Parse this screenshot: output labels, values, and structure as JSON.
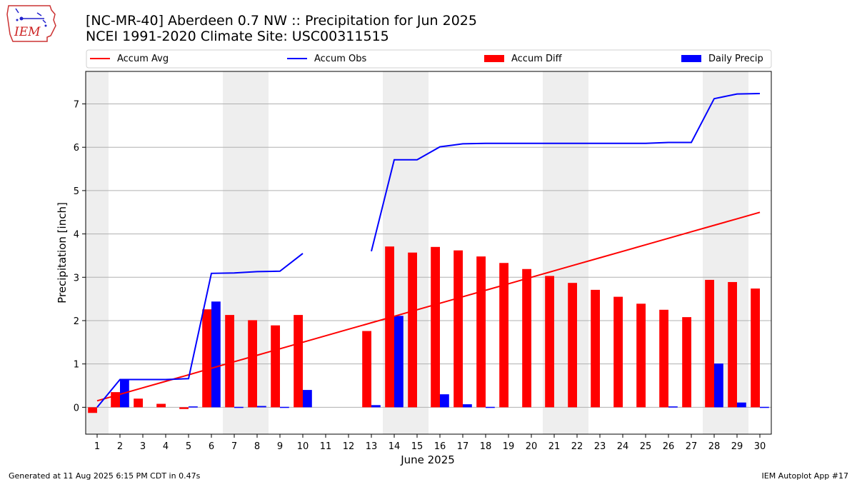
{
  "header": {
    "title_line1": "[NC-MR-40] Aberdeen 0.7 NW :: Precipitation for Jun 2025",
    "title_line2": "NCEI 1991-2020 Climate Site: USC00311515"
  },
  "logo": {
    "text": "IEM",
    "icon": "iem-iowa-logo"
  },
  "footer": {
    "generated": "Generated at 11 Aug 2025 6:15 PM CDT in 0.47s",
    "app": "IEM Autoplot App #17"
  },
  "colors": {
    "accum_avg": "#ff0000",
    "accum_obs": "#0000ff",
    "accum_diff": "#ff0000",
    "daily_precip": "#0000ff",
    "weekend_shade": "#eeeeee",
    "grid": "#b0b0b0"
  },
  "chart_data": {
    "type": "bar",
    "xlabel": "June 2025",
    "ylabel": "Precipitation [inch]",
    "ylim": [
      -0.62,
      7.75
    ],
    "yticks": [
      0,
      1,
      2,
      3,
      4,
      5,
      6,
      7
    ],
    "grid": "horizontal",
    "legend_position": "top",
    "x": [
      1,
      2,
      3,
      4,
      5,
      6,
      7,
      8,
      9,
      10,
      11,
      12,
      13,
      14,
      15,
      16,
      17,
      18,
      19,
      20,
      21,
      22,
      23,
      24,
      25,
      26,
      27,
      28,
      29,
      30
    ],
    "weekend_days": [
      1,
      7,
      8,
      14,
      15,
      21,
      22,
      28,
      29
    ],
    "series": [
      {
        "name": "Accum Avg",
        "type": "line",
        "values": [
          0.15,
          0.3,
          0.45,
          0.6,
          0.75,
          0.9,
          1.05,
          1.2,
          1.35,
          1.5,
          1.65,
          1.8,
          1.95,
          2.1,
          2.25,
          2.4,
          2.55,
          2.7,
          2.85,
          3.0,
          3.15,
          3.3,
          3.45,
          3.6,
          3.75,
          3.9,
          4.05,
          4.2,
          4.35,
          4.5
        ]
      },
      {
        "name": "Accum Obs",
        "type": "line",
        "values": [
          0.0,
          0.64,
          0.64,
          0.64,
          0.66,
          3.09,
          3.1,
          3.13,
          3.14,
          3.55,
          null,
          null,
          3.6,
          5.71,
          5.71,
          6.01,
          6.08,
          6.09,
          6.09,
          6.09,
          6.09,
          6.09,
          6.09,
          6.09,
          6.09,
          6.11,
          6.11,
          7.12,
          7.23,
          7.24
        ]
      },
      {
        "name": "Accum Diff",
        "type": "bar",
        "values": [
          -0.13,
          0.35,
          0.2,
          0.08,
          -0.04,
          2.26,
          2.13,
          2.01,
          1.89,
          2.13,
          null,
          null,
          1.76,
          3.71,
          3.57,
          3.7,
          3.62,
          3.48,
          3.33,
          3.19,
          3.03,
          2.87,
          2.71,
          2.55,
          2.39,
          2.25,
          2.08,
          2.94,
          2.89,
          2.74
        ]
      },
      {
        "name": "Daily Precip",
        "type": "bar",
        "values": [
          0.0,
          0.64,
          0.0,
          0.0,
          0.02,
          2.44,
          0.01,
          0.03,
          0.01,
          0.4,
          null,
          null,
          0.05,
          2.11,
          0.0,
          0.3,
          0.07,
          0.01,
          0.0,
          0.0,
          0.0,
          0.0,
          0.0,
          0.0,
          0.0,
          0.02,
          0.0,
          1.01,
          0.11,
          0.01
        ]
      }
    ]
  }
}
